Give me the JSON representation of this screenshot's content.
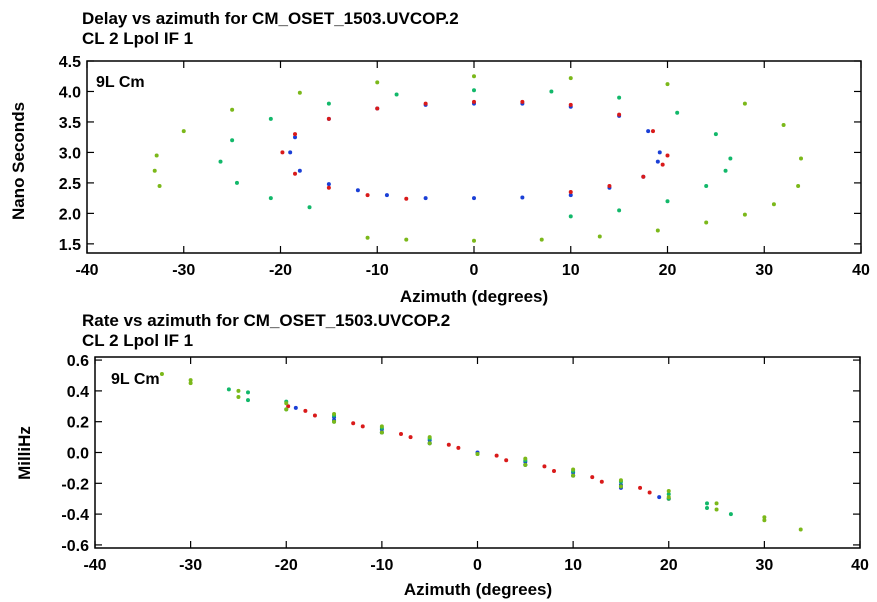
{
  "chart_data": [
    {
      "type": "scatter",
      "title": "Delay vs azimuth for CM_OSET_1503.UVCOP.2",
      "subtitle": "CL 2  Lpol  IF 1",
      "annotation": "9L Cm",
      "xlabel": "Azimuth (degrees)",
      "ylabel": "Nano Seconds",
      "xlim": [
        -40,
        40
      ],
      "ylim": [
        1.35,
        4.5
      ],
      "xticks": [
        "-40",
        "-30",
        "-20",
        "-10",
        "0",
        "10",
        "20",
        "30",
        "40"
      ],
      "yticks": [
        "1.5",
        "2.0",
        "2.5",
        "3.0",
        "3.5",
        "4.0",
        "4.5"
      ],
      "grid": false,
      "series": [
        {
          "color": "#1a3fd6",
          "points": [
            [
              19.2,
              3.0
            ],
            [
              18.0,
              3.35
            ],
            [
              15.0,
              3.6
            ],
            [
              10.0,
              3.75
            ],
            [
              5.0,
              3.8
            ],
            [
              0.0,
              3.8
            ],
            [
              -5.0,
              3.78
            ],
            [
              -10.0,
              3.72
            ],
            [
              -15.0,
              3.55
            ],
            [
              -18.5,
              3.25
            ],
            [
              -19.0,
              3.0
            ],
            [
              -18.0,
              2.7
            ],
            [
              -15.0,
              2.48
            ],
            [
              -12.0,
              2.38
            ],
            [
              -9.0,
              2.3
            ],
            [
              -5.0,
              2.25
            ],
            [
              0.0,
              2.25
            ],
            [
              5.0,
              2.26
            ],
            [
              10.0,
              2.3
            ],
            [
              14.0,
              2.42
            ],
            [
              17.5,
              2.6
            ],
            [
              19.0,
              2.85
            ]
          ]
        },
        {
          "color": "#d91a1a",
          "points": [
            [
              20.0,
              2.95
            ],
            [
              18.5,
              3.35
            ],
            [
              15.0,
              3.62
            ],
            [
              10.0,
              3.78
            ],
            [
              5.0,
              3.83
            ],
            [
              0.0,
              3.83
            ],
            [
              -5.0,
              3.8
            ],
            [
              -10.0,
              3.72
            ],
            [
              -15.0,
              3.55
            ],
            [
              -18.5,
              3.3
            ],
            [
              -19.8,
              3.0
            ],
            [
              -18.5,
              2.65
            ],
            [
              -15.0,
              2.42
            ],
            [
              -11.0,
              2.3
            ],
            [
              -7.0,
              2.24
            ],
            [
              10.0,
              2.35
            ],
            [
              14.0,
              2.45
            ],
            [
              17.5,
              2.6
            ],
            [
              19.5,
              2.8
            ]
          ]
        },
        {
          "color": "#12b86a",
          "points": [
            [
              26.5,
              2.9
            ],
            [
              25.0,
              3.3
            ],
            [
              21.0,
              3.65
            ],
            [
              15.0,
              3.9
            ],
            [
              8.0,
              4.0
            ],
            [
              0.0,
              4.02
            ],
            [
              -8.0,
              3.95
            ],
            [
              -15.0,
              3.8
            ],
            [
              -21.0,
              3.55
            ],
            [
              -25.0,
              3.2
            ],
            [
              -26.2,
              2.85
            ],
            [
              -24.5,
              2.5
            ],
            [
              -21.0,
              2.25
            ],
            [
              -17.0,
              2.1
            ],
            [
              10.0,
              1.95
            ],
            [
              15.0,
              2.05
            ],
            [
              20.0,
              2.2
            ],
            [
              24.0,
              2.45
            ],
            [
              26.0,
              2.7
            ]
          ]
        },
        {
          "color": "#7bb81a",
          "points": [
            [
              33.8,
              2.9
            ],
            [
              32.0,
              3.45
            ],
            [
              28.0,
              3.8
            ],
            [
              20.0,
              4.12
            ],
            [
              10.0,
              4.22
            ],
            [
              0.0,
              4.25
            ],
            [
              -10.0,
              4.15
            ],
            [
              -18.0,
              3.98
            ],
            [
              -25.0,
              3.7
            ],
            [
              -30.0,
              3.35
            ],
            [
              -32.8,
              2.95
            ],
            [
              -33.0,
              2.7
            ],
            [
              -32.5,
              2.45
            ],
            [
              -11.0,
              1.6
            ],
            [
              -7.0,
              1.57
            ],
            [
              0.0,
              1.55
            ],
            [
              7.0,
              1.57
            ],
            [
              13.0,
              1.62
            ],
            [
              19.0,
              1.72
            ],
            [
              24.0,
              1.85
            ],
            [
              28.0,
              1.98
            ],
            [
              31.0,
              2.15
            ],
            [
              33.5,
              2.45
            ]
          ]
        }
      ]
    },
    {
      "type": "scatter",
      "title": "Rate vs azimuth for CM_OSET_1503.UVCOP.2",
      "subtitle": "CL 2  Lpol  IF 1",
      "annotation": "9L Cm",
      "xlabel": "Azimuth (degrees)",
      "ylabel": "MilliHz",
      "xlim": [
        -40,
        40
      ],
      "ylim": [
        -0.62,
        0.62
      ],
      "xticks": [
        "-40",
        "-30",
        "-20",
        "-10",
        "0",
        "10",
        "20",
        "30",
        "40"
      ],
      "yticks": [
        "0.6",
        "0.4",
        "0.2",
        "0.0",
        "-0.2",
        "-0.4",
        "-0.6"
      ],
      "grid": false,
      "series": [
        {
          "color": "#1a3fd6",
          "points": [
            [
              -19.0,
              0.29
            ],
            [
              -15.0,
              0.23
            ],
            [
              -10.0,
              0.15
            ],
            [
              -5.0,
              0.08
            ],
            [
              0.0,
              0.0
            ],
            [
              5.0,
              -0.08
            ],
            [
              10.0,
              -0.15
            ],
            [
              15.0,
              -0.23
            ],
            [
              19.0,
              -0.29
            ],
            [
              15.0,
              -0.21
            ],
            [
              10.0,
              -0.13
            ],
            [
              5.0,
              -0.06
            ],
            [
              -5.0,
              0.06
            ],
            [
              -10.0,
              0.13
            ],
            [
              -15.0,
              0.21
            ]
          ]
        },
        {
          "color": "#d91a1a",
          "points": [
            [
              -19.8,
              0.3
            ],
            [
              -17.0,
              0.24
            ],
            [
              -12.0,
              0.17
            ],
            [
              -7.0,
              0.1
            ],
            [
              -2.0,
              0.03
            ],
            [
              3.0,
              -0.05
            ],
            [
              8.0,
              -0.12
            ],
            [
              13.0,
              -0.19
            ],
            [
              18.0,
              -0.26
            ],
            [
              20.0,
              -0.3
            ],
            [
              17.0,
              -0.23
            ],
            [
              12.0,
              -0.16
            ],
            [
              7.0,
              -0.09
            ],
            [
              2.0,
              -0.02
            ],
            [
              -3.0,
              0.05
            ],
            [
              -8.0,
              0.12
            ],
            [
              -13.0,
              0.19
            ],
            [
              -18.0,
              0.27
            ]
          ]
        },
        {
          "color": "#12b86a",
          "points": [
            [
              -26.0,
              0.41
            ],
            [
              -24.0,
              0.34
            ],
            [
              -20.0,
              0.28
            ],
            [
              -15.0,
              0.2
            ],
            [
              -10.0,
              0.13
            ],
            [
              -5.0,
              0.06
            ],
            [
              0.0,
              -0.01
            ],
            [
              5.0,
              -0.08
            ],
            [
              10.0,
              -0.15
            ],
            [
              15.0,
              -0.22
            ],
            [
              20.0,
              -0.3
            ],
            [
              24.0,
              -0.36
            ],
            [
              26.5,
              -0.4
            ],
            [
              24.0,
              -0.33
            ],
            [
              20.0,
              -0.27
            ],
            [
              15.0,
              -0.19
            ],
            [
              10.0,
              -0.12
            ],
            [
              5.0,
              -0.05
            ],
            [
              -5.0,
              0.09
            ],
            [
              -10.0,
              0.16
            ],
            [
              -15.0,
              0.24
            ],
            [
              -20.0,
              0.33
            ],
            [
              -24.0,
              0.39
            ]
          ]
        },
        {
          "color": "#7bb81a",
          "points": [
            [
              -33.0,
              0.51
            ],
            [
              -30.0,
              0.45
            ],
            [
              -25.0,
              0.36
            ],
            [
              -20.0,
              0.28
            ],
            [
              -15.0,
              0.2
            ],
            [
              -10.0,
              0.13
            ],
            [
              -5.0,
              0.06
            ],
            [
              0.0,
              -0.01
            ],
            [
              5.0,
              -0.08
            ],
            [
              10.0,
              -0.15
            ],
            [
              15.0,
              -0.22
            ],
            [
              20.0,
              -0.29
            ],
            [
              25.0,
              -0.37
            ],
            [
              30.0,
              -0.44
            ],
            [
              33.8,
              -0.5
            ],
            [
              30.0,
              -0.42
            ],
            [
              25.0,
              -0.33
            ],
            [
              20.0,
              -0.25
            ],
            [
              15.0,
              -0.18
            ],
            [
              10.0,
              -0.11
            ],
            [
              5.0,
              -0.04
            ],
            [
              -5.0,
              0.1
            ],
            [
              -10.0,
              0.17
            ],
            [
              -15.0,
              0.25
            ],
            [
              -20.0,
              0.32
            ],
            [
              -25.0,
              0.4
            ],
            [
              -30.0,
              0.47
            ]
          ]
        }
      ]
    }
  ]
}
